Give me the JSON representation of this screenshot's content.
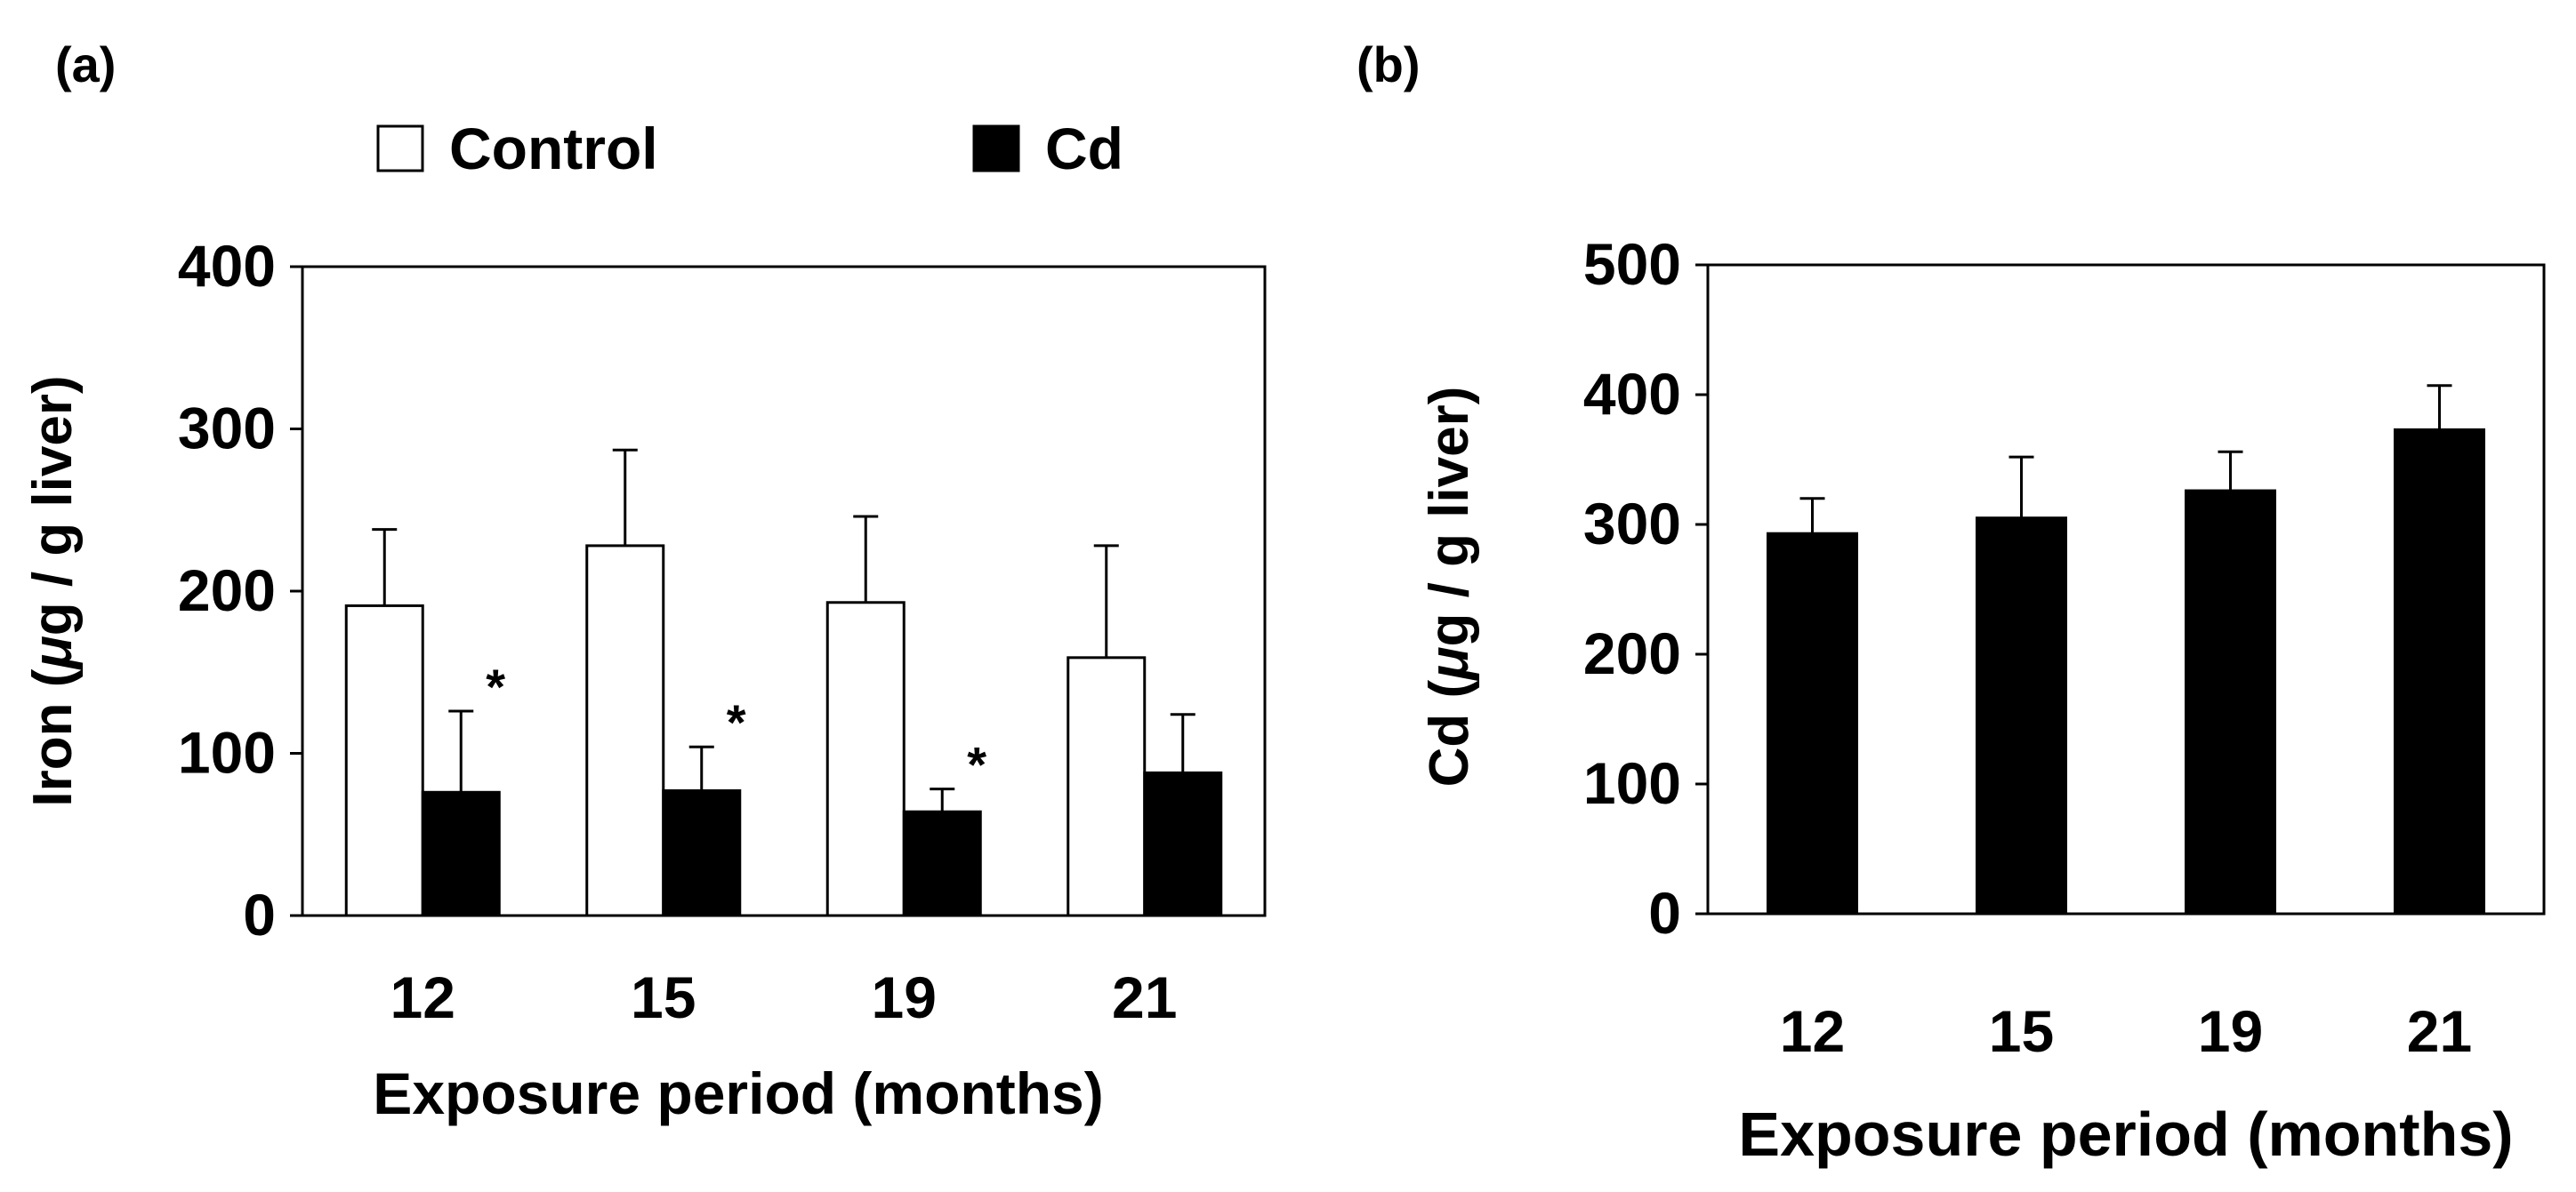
{
  "colors": {
    "control": "#ffffff",
    "cd": "#000000",
    "axis": "#000000"
  },
  "chart_data": [
    {
      "type": "bar",
      "panel_label": "(a)",
      "categories": [
        "12",
        "15",
        "19",
        "21"
      ],
      "series": [
        {
          "name": "Control",
          "values": [
            191,
            228,
            193,
            159
          ],
          "errors": [
            47,
            59,
            53,
            69
          ],
          "significant": [
            false,
            false,
            false,
            false
          ]
        },
        {
          "name": "Cd",
          "values": [
            76,
            77,
            64,
            88
          ],
          "errors": [
            50,
            27,
            14,
            36
          ],
          "significant": [
            true,
            true,
            true,
            false
          ]
        }
      ],
      "significance_marker": "*",
      "xlabel": "Exposure period (months)",
      "ylabel_prefix": "Iron (",
      "ylabel_mu": "μ",
      "ylabel_suffix": "g / g liver)",
      "ylim": [
        0,
        400
      ],
      "yticks": [
        0,
        100,
        200,
        300,
        400
      ],
      "legend": [
        "Control",
        "Cd"
      ],
      "legend_position": "top"
    },
    {
      "type": "bar",
      "panel_label": "(b)",
      "categories": [
        "12",
        "15",
        "19",
        "21"
      ],
      "series": [
        {
          "name": "Cd",
          "values": [
            293,
            305,
            326,
            373
          ],
          "errors": [
            27,
            47,
            30,
            34
          ]
        }
      ],
      "xlabel": "Exposure period (months)",
      "ylabel_prefix": "Cd (",
      "ylabel_mu": "μ",
      "ylabel_suffix": "g / g liver)",
      "ylim": [
        0,
        500
      ],
      "yticks": [
        0,
        100,
        200,
        300,
        400,
        500
      ]
    }
  ]
}
